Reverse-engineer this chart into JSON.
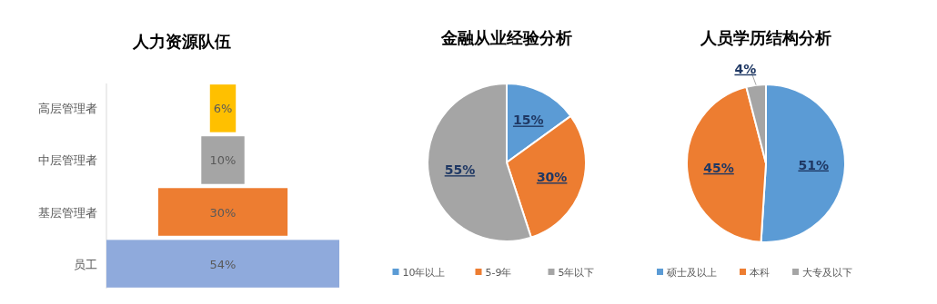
{
  "chart_data": [
    {
      "type": "other",
      "title": "人力资源队伍",
      "categories": [
        "高层管理者",
        "中层管理者",
        "基层管理者",
        "员工"
      ],
      "values": [
        6,
        10,
        30,
        54
      ],
      "colors": [
        "#ffc000",
        "#a5a5a5",
        "#ed7d31",
        "#8faadc"
      ],
      "value_labels": [
        "6%",
        "10%",
        "30%",
        "54%"
      ]
    },
    {
      "type": "pie",
      "title": "金融从业经验分析",
      "categories": [
        "10年以上",
        "5-9年",
        "5年以下"
      ],
      "values": [
        15,
        30,
        55
      ],
      "colors": [
        "#5b9bd5",
        "#ed7d31",
        "#a5a5a5"
      ],
      "value_labels": [
        "15%",
        "30%",
        "55%"
      ],
      "legend": "bottom"
    },
    {
      "type": "pie",
      "title": "人员学历结构分析",
      "categories": [
        "硕士及以上",
        "本科",
        "大专及以下"
      ],
      "values": [
        51,
        45,
        4
      ],
      "colors": [
        "#5b9bd5",
        "#ed7d31",
        "#a5a5a5"
      ],
      "value_labels": [
        "51%",
        "45%",
        "4%"
      ],
      "legend": "bottom"
    }
  ]
}
